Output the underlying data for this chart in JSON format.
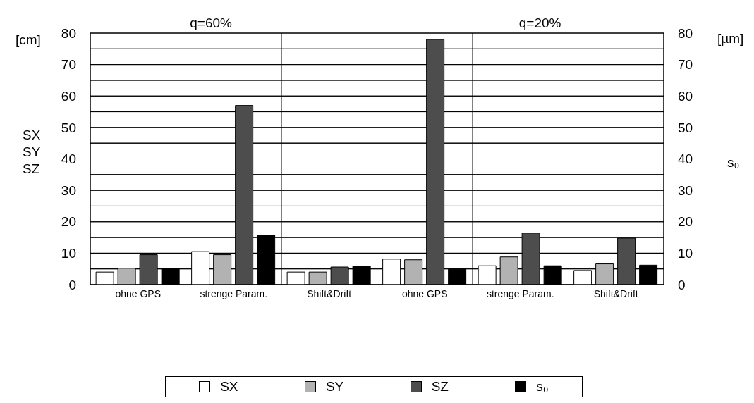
{
  "chart_data": {
    "type": "bar",
    "categories": [
      "ohne GPS",
      "strenge Param.",
      "Shift&Drift",
      "ohne GPS",
      "strenge Param.",
      "Shift&Drift"
    ],
    "series": [
      {
        "name": "SX",
        "color": "#ffffff",
        "values": [
          4.0,
          10.5,
          4.0,
          8.1,
          6.0,
          4.5
        ]
      },
      {
        "name": "SY",
        "color": "#b2b2b2",
        "values": [
          5.2,
          9.5,
          4.0,
          7.9,
          8.8,
          6.6
        ]
      },
      {
        "name": "SZ",
        "color": "#4d4d4d",
        "values": [
          9.5,
          57,
          5.6,
          78,
          16.4,
          14.8
        ]
      },
      {
        "name": "s₀",
        "color": "#000000",
        "axis": "y2",
        "values": [
          5.1,
          15.7,
          5.9,
          4.9,
          6.0,
          6.2
        ]
      }
    ],
    "ylabel": "SX\nSY\nSZ",
    "y2label": "s₀",
    "ylim": [
      0,
      80
    ],
    "yticks": [
      0,
      {
        "value": 5,
        "label": null
      },
      10,
      {
        "value": 15,
        "label": null
      },
      20,
      {
        "value": 25,
        "label": null
      },
      30,
      {
        "value": 35,
        "label": null
      },
      40,
      {
        "value": 45,
        "label": null
      },
      50,
      {
        "value": 55,
        "label": null
      },
      60,
      {
        "value": 65,
        "label": null
      },
      70,
      {
        "value": 75,
        "label": null
      },
      80
    ],
    "y2lim": [
      0,
      80
    ],
    "y2ticks": [
      0,
      {
        "value": 5,
        "label": null
      },
      10,
      {
        "value": 15,
        "label": null
      },
      20,
      {
        "value": 25,
        "label": null
      },
      30,
      {
        "value": 35,
        "label": null
      },
      40,
      {
        "value": 45,
        "label": null
      },
      50,
      {
        "value": 55,
        "label": null
      },
      60,
      {
        "value": 65,
        "label": null
      },
      70,
      {
        "value": 75,
        "label": null
      },
      80
    ],
    "annotations": [
      "q=60%",
      "q=20%",
      "[cm]",
      "[µm]"
    ],
    "grid": true,
    "legend": "bottom"
  }
}
